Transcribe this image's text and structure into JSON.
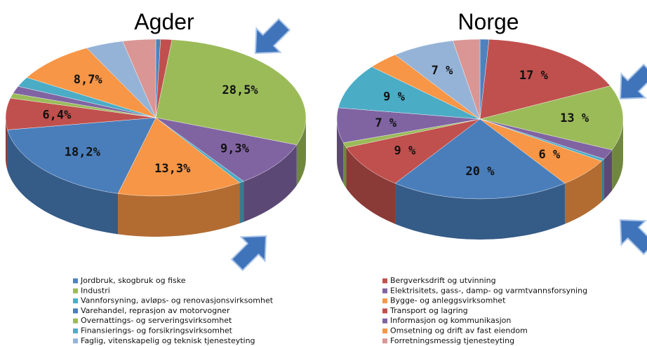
{
  "legend": {
    "categories": [
      "Jordbruk, skogbruk og fiske",
      "Bergverksdrift og utvinning",
      "Industri",
      "Elektrisitets, gass-, damp- og varmtvannsforsyning",
      "Vannforsyning, avløps- og renovasjonsvirksomhet",
      "Bygge- og anleggsvirksomhet",
      "Varehandel, reprasjon av motorvogner",
      "Transport og lagring",
      "Overnattings- og serveringsvirksomhet",
      "Informasjon og kommunikasjon",
      "Finansierings- og forsikringsvirksomhet",
      "Omsetning og drift av fast eiendom",
      "Faglig,  vitenskapelig og teknisk tjenesteyting",
      "Forretningsmessig tjenesteyting"
    ],
    "colors": [
      "#4f81bd",
      "#c0504d",
      "#9bbb59",
      "#8064a2",
      "#4bacc6",
      "#f79646",
      "#4a7ebb",
      "#c0504d",
      "#9bbb59",
      "#8064a2",
      "#4bacc6",
      "#f79646",
      "#95b3d7",
      "#d99694"
    ]
  },
  "chart_data": [
    {
      "type": "pie",
      "title": "Agder",
      "values": [
        0.5,
        1.2,
        28.5,
        9.3,
        0.5,
        13.3,
        18.2,
        6.4,
        1,
        1.5,
        2,
        8.7,
        4,
        3.5
      ],
      "value_labels": [
        null,
        null,
        "28,5%",
        "9,3%",
        null,
        "13,3%",
        "18,2%",
        "6,4%",
        null,
        null,
        null,
        "8,7%",
        null,
        null
      ]
    },
    {
      "type": "pie",
      "title": "Norge",
      "values": [
        1,
        17,
        13,
        2,
        0.5,
        6,
        20,
        9,
        1,
        7,
        9,
        3.5,
        7,
        3
      ],
      "value_labels": [
        null,
        "17 %",
        "13 %",
        null,
        null,
        "6 %",
        "20 %",
        "9 %",
        null,
        "7 %",
        "9 %",
        null,
        "7 %",
        null
      ]
    }
  ]
}
